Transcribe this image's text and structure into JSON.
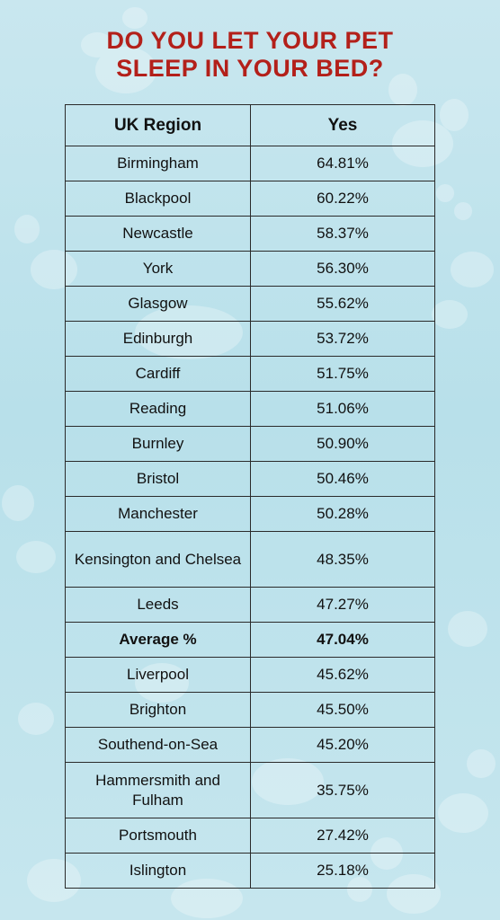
{
  "title_line1": "DO YOU LET YOUR PET",
  "title_line2": "SLEEP IN YOUR BED?",
  "colors": {
    "title": "#b3201a",
    "background": "#c2e4ed",
    "border": "#2a2a2a"
  },
  "chart_data": {
    "type": "table",
    "headers": [
      "UK Region",
      "Yes"
    ],
    "rows": [
      {
        "region": "Birmingham",
        "yes": "64.81%"
      },
      {
        "region": "Blackpool",
        "yes": "60.22%"
      },
      {
        "region": "Newcastle",
        "yes": "58.37%"
      },
      {
        "region": "York",
        "yes": "56.30%"
      },
      {
        "region": "Glasgow",
        "yes": "55.62%"
      },
      {
        "region": "Edinburgh",
        "yes": "53.72%"
      },
      {
        "region": "Cardiff",
        "yes": "51.75%"
      },
      {
        "region": "Reading",
        "yes": "51.06%"
      },
      {
        "region": "Burnley",
        "yes": "50.90%"
      },
      {
        "region": "Bristol",
        "yes": "50.46%"
      },
      {
        "region": "Manchester",
        "yes": "50.28%"
      },
      {
        "region": "Kensington and Chelsea",
        "yes": "48.35%"
      },
      {
        "region": "Leeds",
        "yes": "47.27%"
      },
      {
        "region": "Average %",
        "yes": "47.04%",
        "highlight": true
      },
      {
        "region": "Liverpool",
        "yes": "45.62%"
      },
      {
        "region": "Brighton",
        "yes": "45.50%"
      },
      {
        "region": "Southend-on-Sea",
        "yes": "45.20%"
      },
      {
        "region": "Hammersmith and Fulham",
        "yes": "35.75%"
      },
      {
        "region": "Portsmouth",
        "yes": "27.42%"
      },
      {
        "region": "Islington",
        "yes": "25.18%"
      }
    ]
  }
}
